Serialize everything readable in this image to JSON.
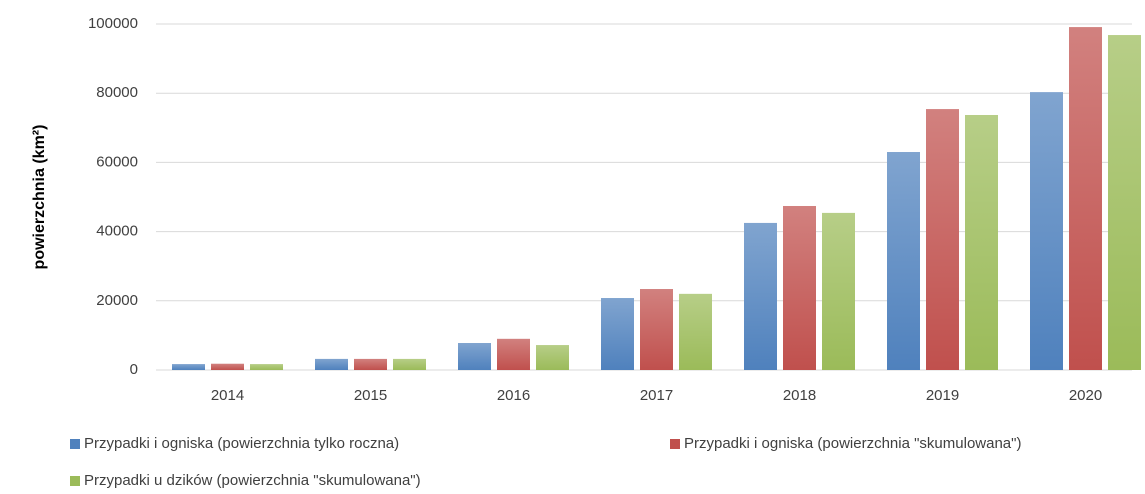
{
  "chart_data": {
    "type": "bar",
    "y_label": "powierzchnia (km²)",
    "categories": [
      "2014",
      "2015",
      "2016",
      "2017",
      "2018",
      "2019",
      "2020"
    ],
    "series": [
      {
        "name": "Przypadki i ogniska (powierzchnia tylko roczna)",
        "color": "#4f81bd",
        "values": [
          1700,
          3200,
          7800,
          20800,
          42500,
          63000,
          80300
        ]
      },
      {
        "name": "Przypadki i ogniska (powierzchnia \"skumulowana\")",
        "color": "#c0504d",
        "values": [
          1800,
          3200,
          9000,
          23400,
          47400,
          75400,
          99100
        ]
      },
      {
        "name": "Przypadki u dzików (powierzchnia \"skumulowana\")",
        "color": "#9bbb59",
        "values": [
          1700,
          3200,
          7200,
          22000,
          45400,
          73700,
          96800
        ]
      }
    ],
    "ylim": [
      0,
      100000
    ],
    "yticks": [
      0,
      20000,
      40000,
      60000,
      80000,
      100000
    ],
    "grid": true
  }
}
